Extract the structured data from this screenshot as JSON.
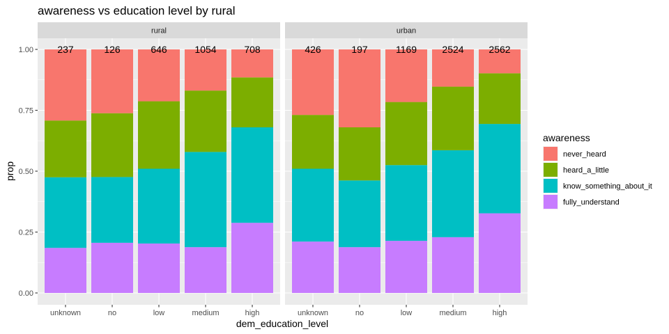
{
  "chart_data": {
    "type": "bar",
    "stacked": true,
    "title": "awareness vs education level by rural",
    "xlabel": "dem_education_level",
    "ylabel": "prop",
    "ylim": [
      0,
      1
    ],
    "yticks": [
      "0.00",
      "0.25",
      "0.50",
      "0.75",
      "1.00"
    ],
    "categories": [
      "unknown",
      "no",
      "low",
      "medium",
      "high"
    ],
    "legend": {
      "title": "awareness",
      "position": "right",
      "items": [
        "never_heard",
        "heard_a_little",
        "know_something_about_it",
        "fully_understand"
      ]
    },
    "colors": {
      "never_heard": "#F8766D",
      "heard_a_little": "#7CAE00",
      "know_something_about_it": "#00BFC4",
      "fully_understand": "#C77CFF"
    },
    "facets": [
      {
        "label": "rural",
        "counts": [
          "237",
          "126",
          "646",
          "1054",
          "708"
        ],
        "series": [
          {
            "name": "fully_understand",
            "values": [
              0.185,
              0.206,
              0.203,
              0.188,
              0.288
            ]
          },
          {
            "name": "know_something_about_it",
            "values": [
              0.29,
              0.27,
              0.307,
              0.391,
              0.392
            ]
          },
          {
            "name": "heard_a_little",
            "values": [
              0.233,
              0.262,
              0.277,
              0.252,
              0.205
            ]
          },
          {
            "name": "never_heard",
            "values": [
              0.292,
              0.262,
              0.213,
              0.169,
              0.115
            ]
          }
        ]
      },
      {
        "label": "urban",
        "counts": [
          "426",
          "197",
          "1169",
          "2524",
          "2562"
        ],
        "series": [
          {
            "name": "fully_understand",
            "values": [
              0.211,
              0.188,
              0.214,
              0.229,
              0.327
            ]
          },
          {
            "name": "know_something_about_it",
            "values": [
              0.299,
              0.274,
              0.311,
              0.357,
              0.367
            ]
          },
          {
            "name": "heard_a_little",
            "values": [
              0.221,
              0.218,
              0.259,
              0.261,
              0.208
            ]
          },
          {
            "name": "never_heard",
            "values": [
              0.269,
              0.32,
              0.216,
              0.153,
              0.098
            ]
          }
        ]
      }
    ]
  }
}
